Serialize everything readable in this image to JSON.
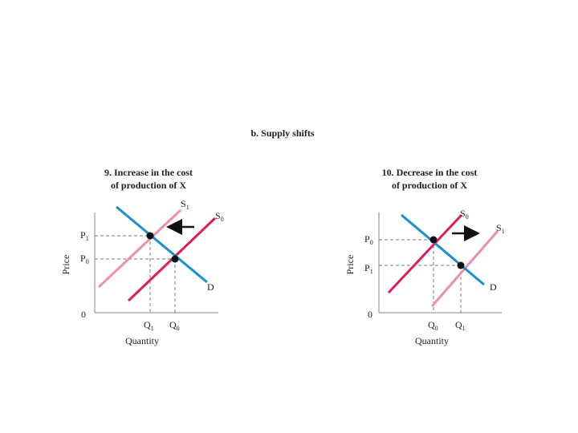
{
  "header": {
    "title": "b. Supply shifts"
  },
  "panels": [
    {
      "title_lines": [
        "9. Increase in the cost",
        "of production of X"
      ],
      "y_axis_label": "Price",
      "x_axis_label": "Quantity",
      "origin": "0",
      "price_labels": [
        {
          "main": "P",
          "sub": "1"
        },
        {
          "main": "P",
          "sub": "0"
        }
      ],
      "quantity_labels": [
        {
          "main": "Q",
          "sub": "1"
        },
        {
          "main": "Q",
          "sub": "0"
        }
      ],
      "supply_labels": [
        {
          "main": "S",
          "sub": "1"
        },
        {
          "main": "S",
          "sub": "0"
        }
      ],
      "demand_label": "D"
    },
    {
      "title_lines": [
        "10. Decrease in the cost",
        "of production of X"
      ],
      "y_axis_label": "Price",
      "x_axis_label": "Quantity",
      "origin": "0",
      "price_labels": [
        {
          "main": "P",
          "sub": "0"
        },
        {
          "main": "P",
          "sub": "1"
        }
      ],
      "quantity_labels": [
        {
          "main": "Q",
          "sub": "0"
        },
        {
          "main": "Q",
          "sub": "1"
        }
      ],
      "supply_labels": [
        {
          "main": "S",
          "sub": "0"
        },
        {
          "main": "S",
          "sub": "1"
        }
      ],
      "demand_label": "D"
    }
  ]
}
